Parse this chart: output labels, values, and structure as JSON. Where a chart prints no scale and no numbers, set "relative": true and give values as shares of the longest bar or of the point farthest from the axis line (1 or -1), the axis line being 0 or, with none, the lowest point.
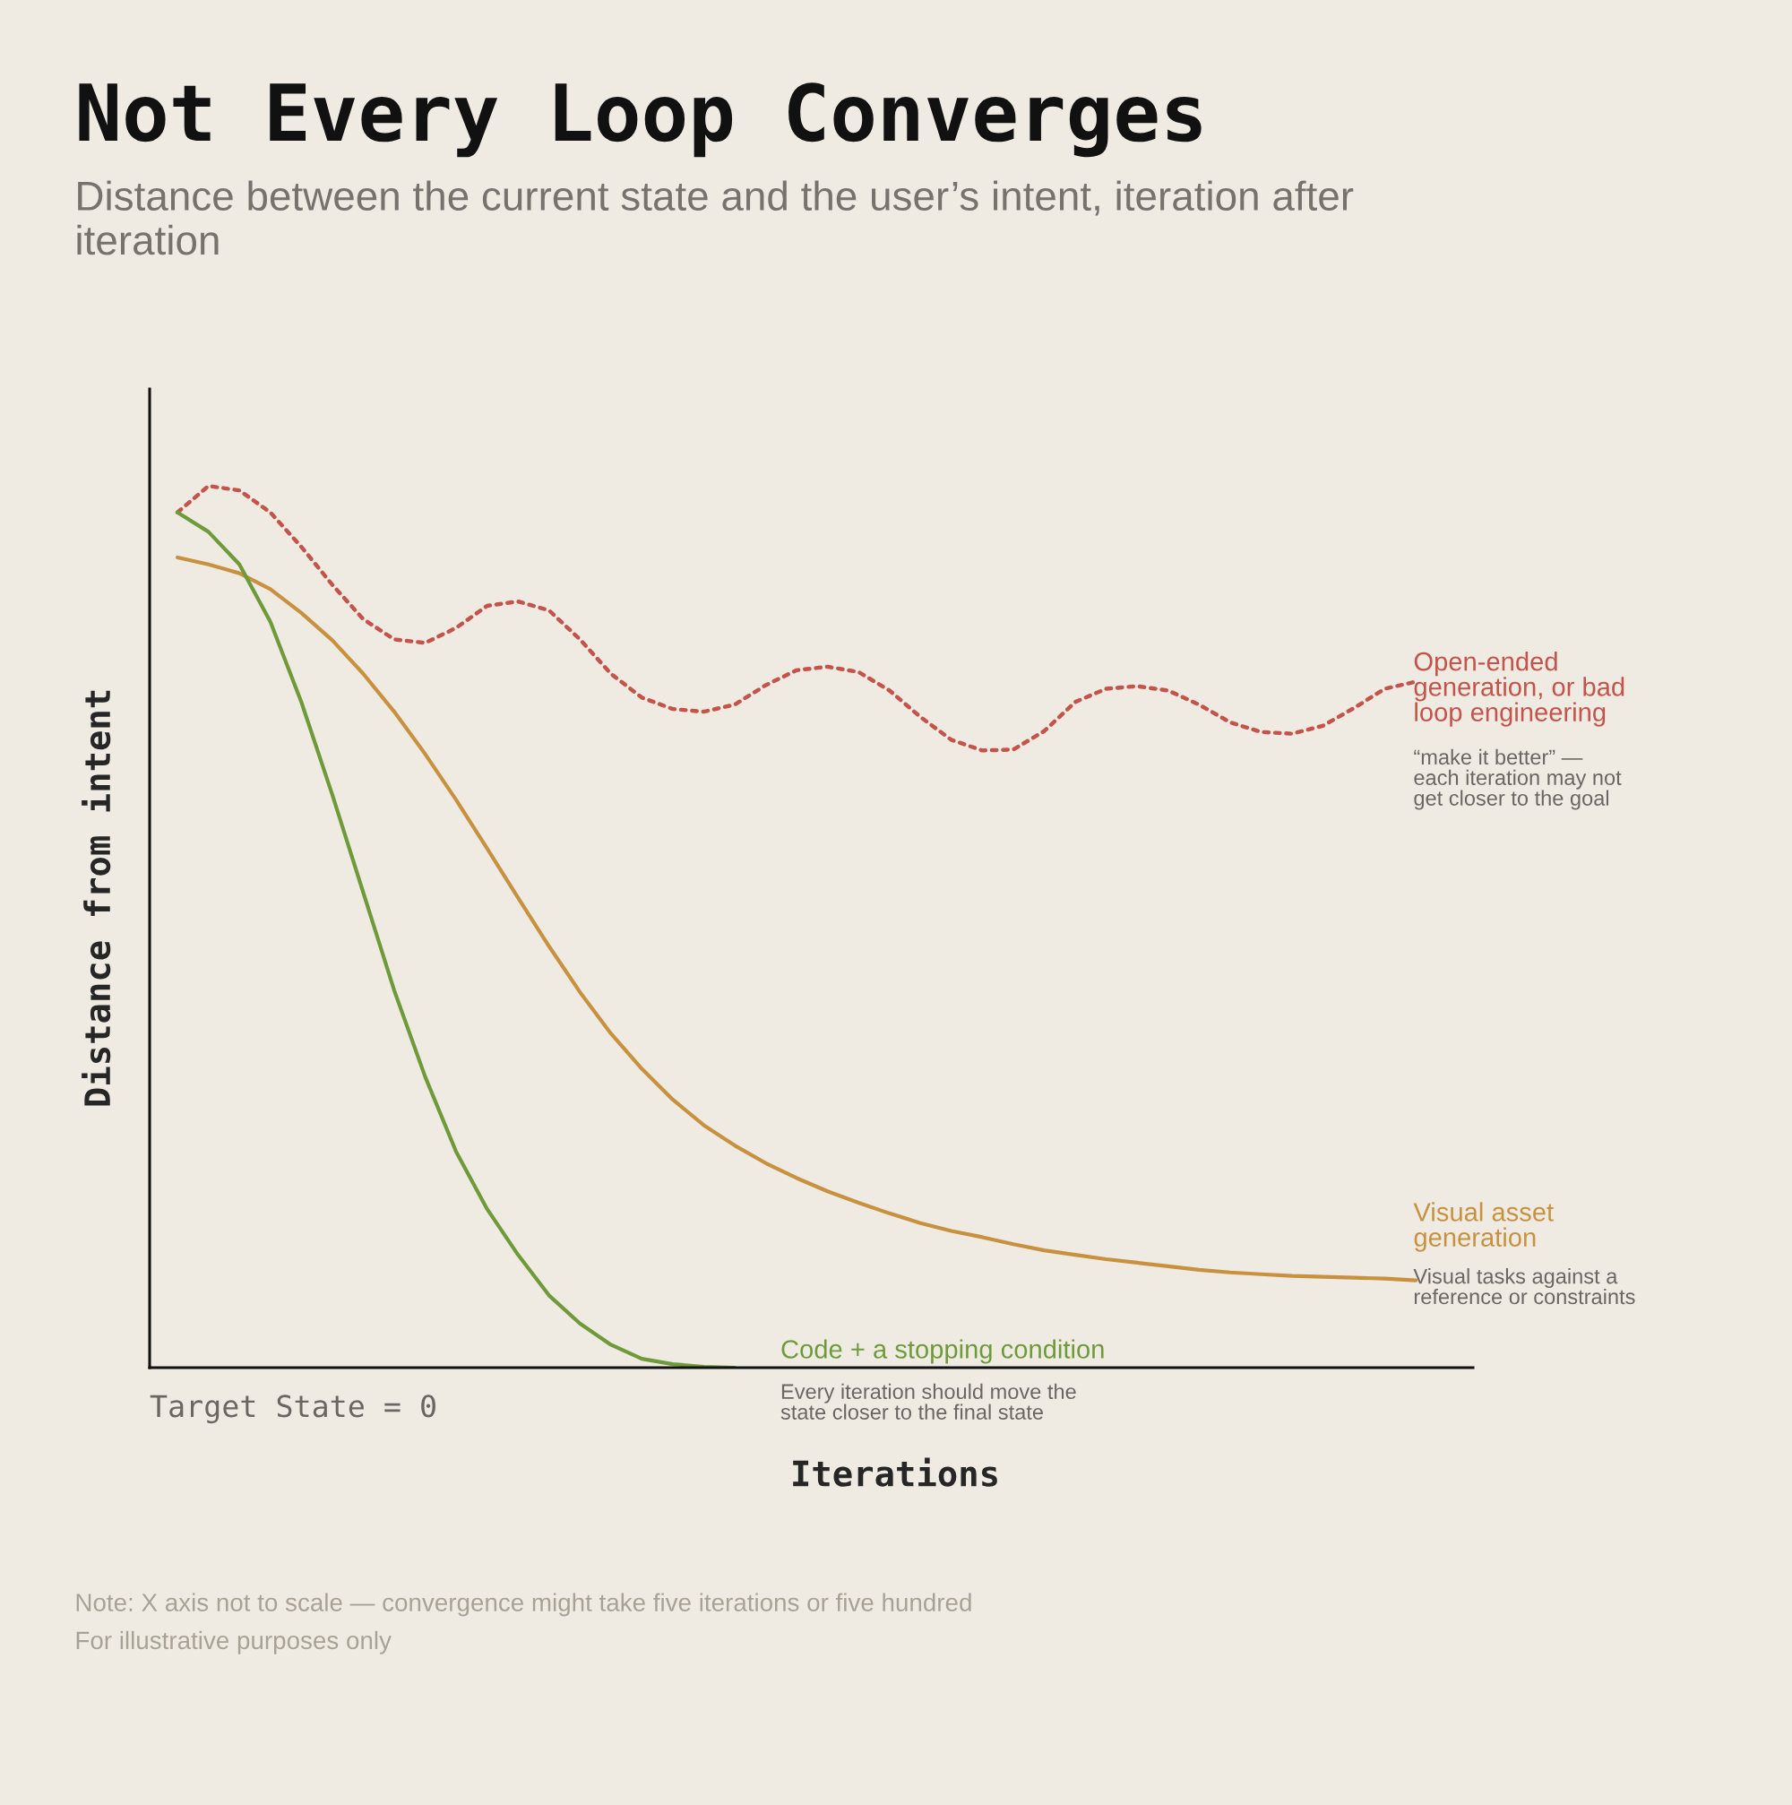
{
  "chart_data": {
    "type": "line",
    "relative": true,
    "title": "Not Every Loop Converges",
    "subtitle": "Distance between the current state and the user’s intent, iteration after iteration",
    "xlabel": "Iterations",
    "ylabel": "Distance from intent",
    "categories": [
      null,
      null,
      null,
      null,
      null,
      null,
      null,
      null,
      null,
      null,
      null,
      null,
      null,
      null,
      null,
      null,
      null,
      null,
      null,
      null,
      null,
      null,
      null,
      null,
      null,
      null,
      null,
      null,
      null,
      null,
      null,
      null,
      null,
      null,
      null,
      null,
      null,
      null,
      null,
      null,
      null
    ],
    "series": [
      {
        "name": "Open-ended generation, or bad loop engineering",
        "color": "#c4534a",
        "line_style": "dotted",
        "values": [
          0.97,
          1.0,
          0.995,
          0.97,
          0.931,
          0.888,
          0.849,
          0.826,
          0.822,
          0.839,
          0.864,
          0.869,
          0.859,
          0.826,
          0.787,
          0.76,
          0.747,
          0.744,
          0.752,
          0.774,
          0.791,
          0.795,
          0.789,
          0.768,
          0.738,
          0.712,
          0.7,
          0.701,
          0.722,
          0.755,
          0.77,
          0.773,
          0.768,
          0.752,
          0.732,
          0.721,
          0.719,
          0.728,
          0.748,
          0.77,
          0.778
        ]
      },
      {
        "name": "Visual asset generation",
        "color": "#c8913f",
        "line_style": "solid",
        "values": [
          0.919,
          0.911,
          0.901,
          0.883,
          0.856,
          0.825,
          0.787,
          0.744,
          0.696,
          0.644,
          0.589,
          0.533,
          0.478,
          0.426,
          0.379,
          0.339,
          0.304,
          0.275,
          0.252,
          0.232,
          0.215,
          0.2,
          0.187,
          0.175,
          0.164,
          0.155,
          0.148,
          0.14,
          0.133,
          0.128,
          0.123,
          0.119,
          0.115,
          0.111,
          0.108,
          0.106,
          0.104,
          0.103,
          0.102,
          0.101,
          0.099
        ]
      },
      {
        "name": "Code + a stopping condition",
        "color": "#6e9a3a",
        "line_style": "solid",
        "values": [
          0.97,
          0.948,
          0.911,
          0.846,
          0.755,
          0.65,
          0.539,
          0.428,
          0.33,
          0.245,
          0.18,
          0.128,
          0.082,
          0.05,
          0.026,
          0.01,
          0.004,
          0.001,
          0,
          null,
          null,
          null,
          null,
          null,
          null,
          null,
          null,
          null,
          null,
          null,
          null,
          null,
          null,
          null,
          null,
          null,
          null,
          null,
          null,
          null,
          null
        ]
      }
    ],
    "annotations": [
      "“make it better” — each iteration may not get closer to the goal",
      "Visual tasks against a reference or constraints",
      "Every iteration should move the state closer to the final state",
      "Target State = 0",
      "Note: X axis not to scale — convergence might take five iterations or five hundred",
      "For illustrative purposes only"
    ],
    "grid": false,
    "legend": "right"
  }
}
